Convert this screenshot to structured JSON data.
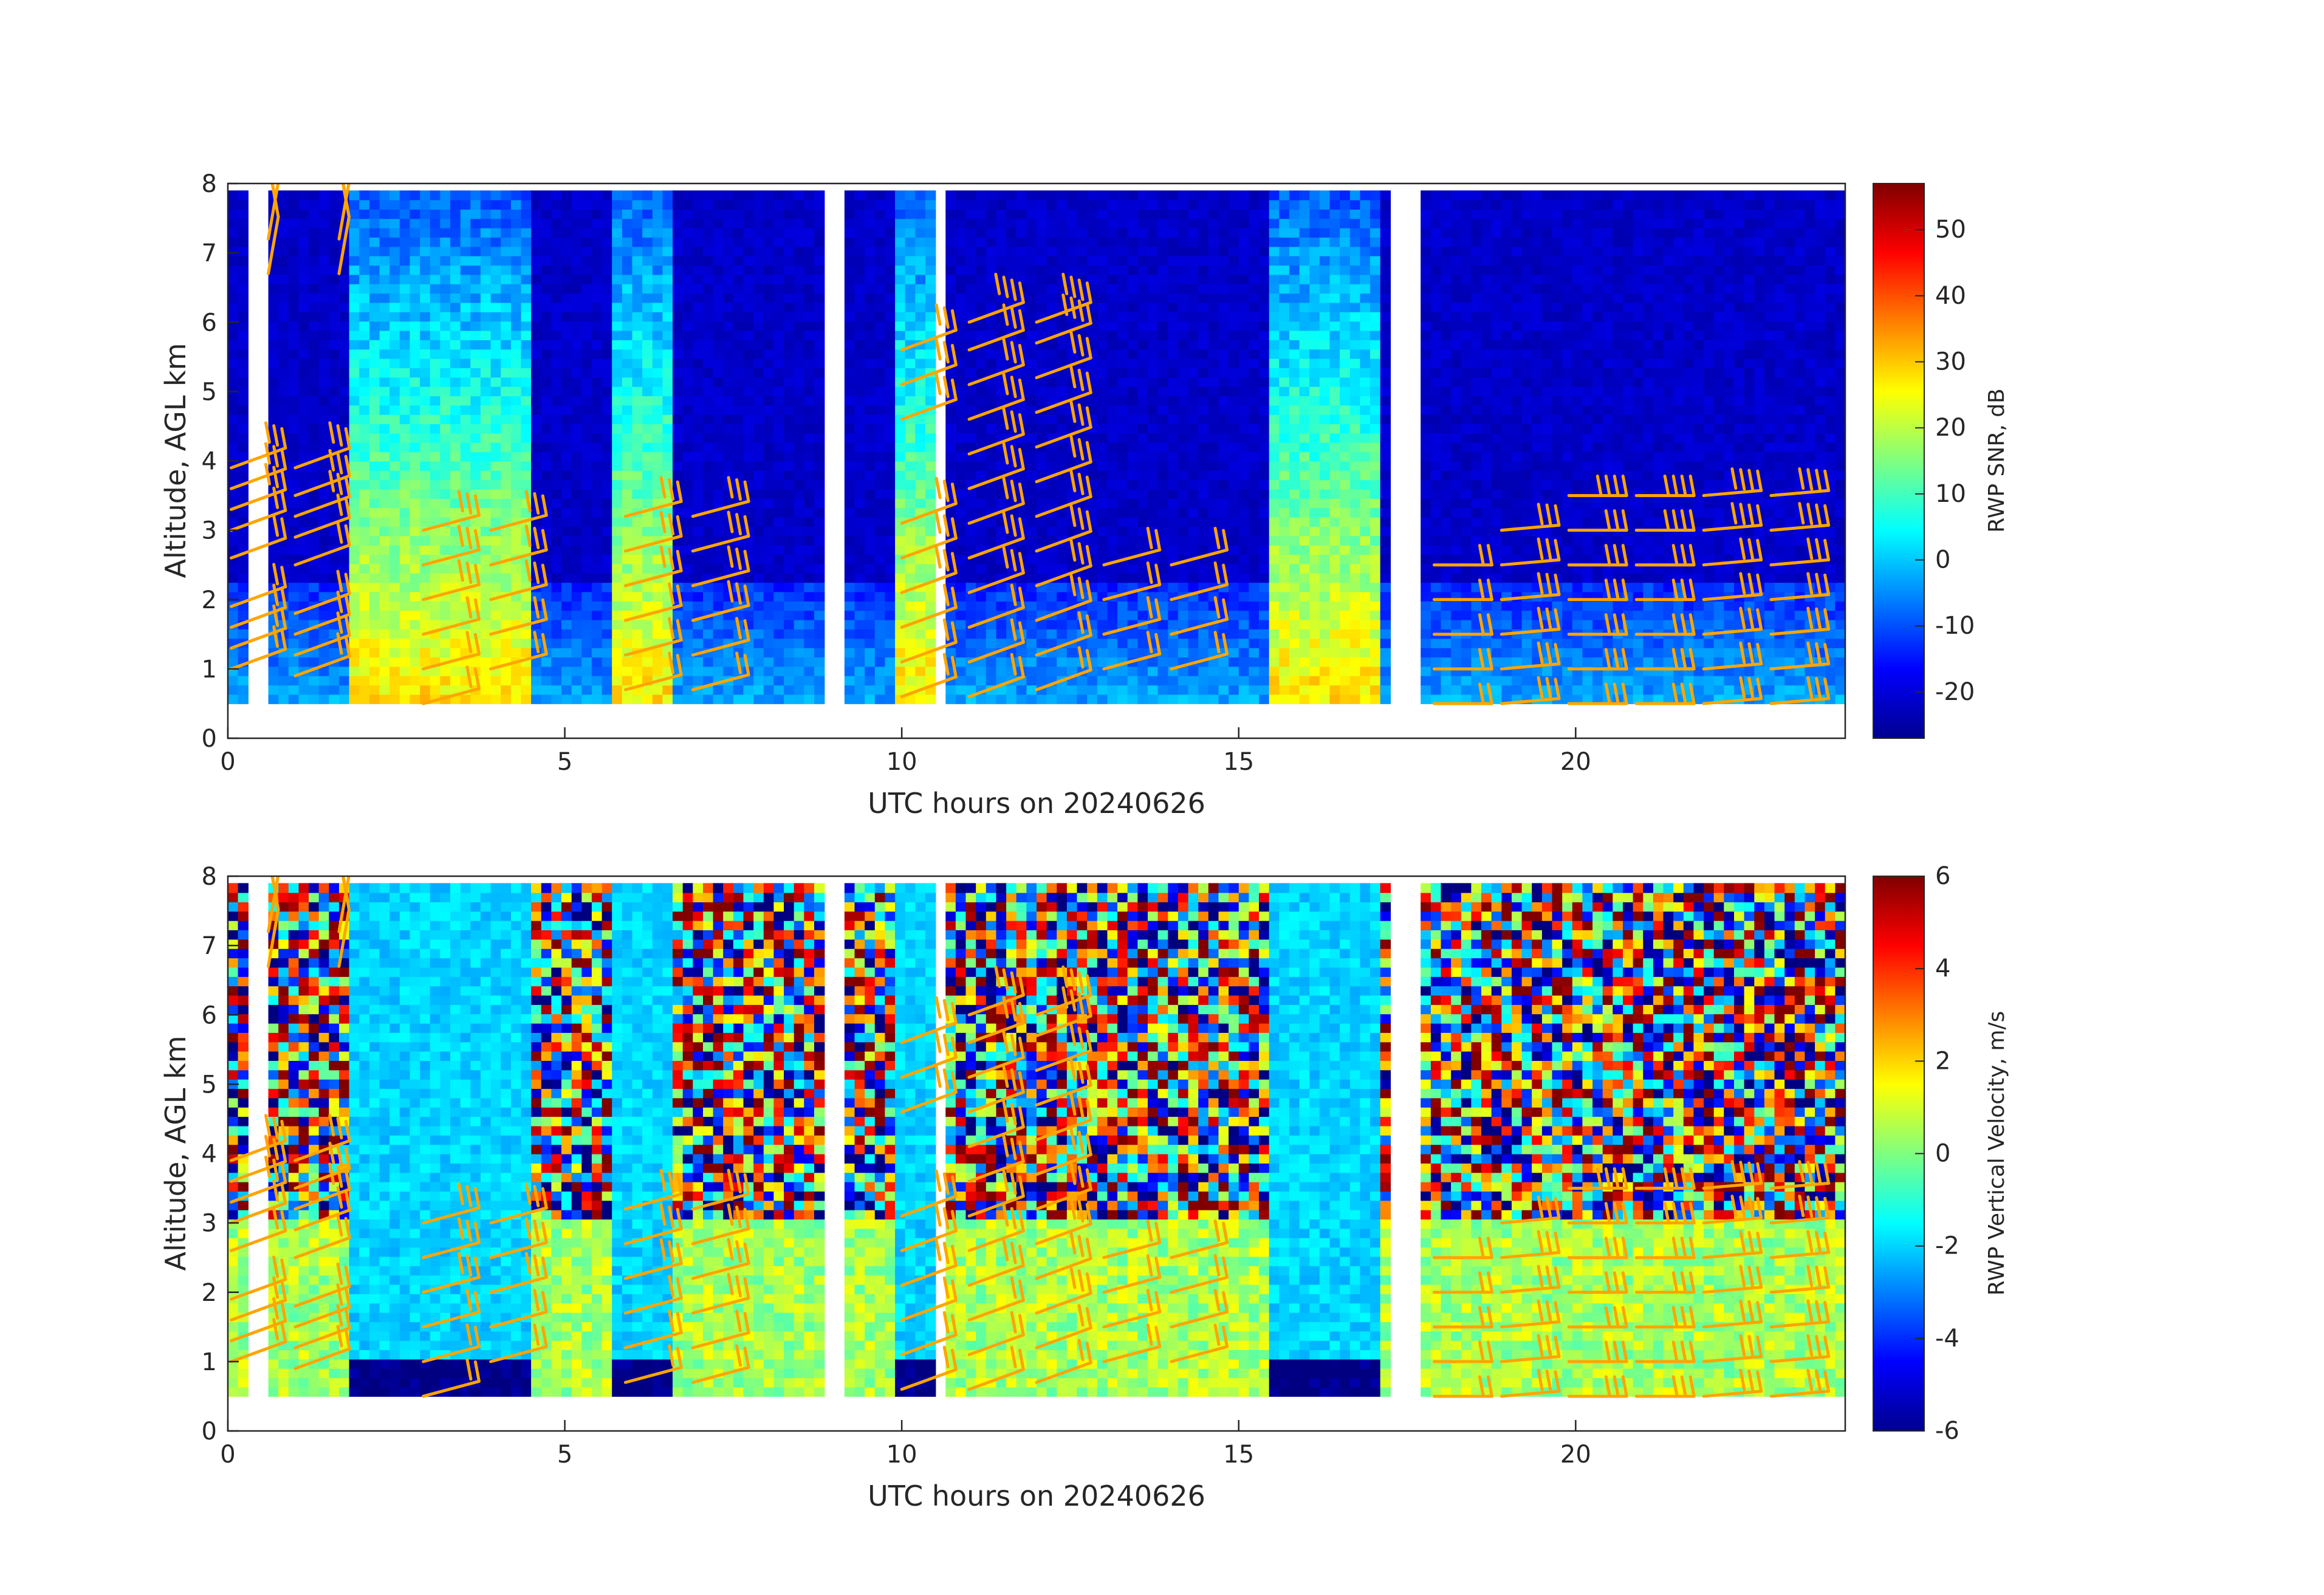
{
  "chart_data": [
    {
      "type": "heatmap",
      "title": "",
      "xlabel": "UTC hours on 20240626",
      "ylabel": "Altitude, AGL km",
      "xlim": [
        0,
        24
      ],
      "ylim": [
        0,
        8
      ],
      "xticks": [
        0,
        5,
        10,
        15,
        20
      ],
      "yticks": [
        0,
        1,
        2,
        3,
        4,
        5,
        6,
        7,
        8
      ],
      "colorbar": {
        "label": "RWP SNR, dB",
        "range": [
          -27,
          57
        ],
        "ticks": [
          -20,
          -10,
          0,
          10,
          20,
          30,
          40,
          50
        ],
        "colormap": "jet"
      },
      "overlay": "wind barbs",
      "barb_color": "#ffa500",
      "convective_periods_hours": [
        [
          1.7,
          4.4
        ],
        [
          5.6,
          6.6
        ],
        [
          9.9,
          10.4
        ],
        [
          15.4,
          17.0
        ]
      ],
      "peak_snr_dB": 35,
      "background_snr_dB": -22,
      "data_gaps_hours": [
        [
          0.3,
          0.6
        ],
        [
          8.8,
          9.1
        ],
        [
          10.5,
          10.6
        ],
        [
          17.1,
          17.6
        ]
      ]
    },
    {
      "type": "heatmap",
      "title": "",
      "xlabel": "UTC hours on 20240626",
      "ylabel": "Altitude, AGL km",
      "xlim": [
        0,
        24
      ],
      "ylim": [
        0,
        8
      ],
      "xticks": [
        0,
        5,
        10,
        15,
        20
      ],
      "yticks": [
        0,
        1,
        2,
        3,
        4,
        5,
        6,
        7,
        8
      ],
      "colorbar": {
        "label": "RWP Vertical Velocity, m/s",
        "range": [
          -6,
          6
        ],
        "ticks": [
          -6,
          -4,
          -2,
          0,
          2,
          4,
          6
        ],
        "colormap": "jet"
      },
      "overlay": "wind barbs",
      "barb_color": "#ffa500",
      "precip_fall_velocity_m_s": -2,
      "heavy_rain_velocity_m_s": -6,
      "noise_above_km": 3
    }
  ],
  "barbs": [
    {
      "t": 0.05,
      "z": [
        1.0,
        1.3,
        1.6,
        1.9,
        2.6,
        3.0,
        3.3,
        3.6,
        3.9
      ],
      "dir": 290,
      "speed": [
        15,
        15,
        15,
        20,
        20,
        20,
        25,
        25,
        25
      ]
    },
    {
      "t": 1.0,
      "z": [
        0.9,
        1.2,
        1.5,
        1.8,
        2.5,
        2.9,
        3.2,
        3.5,
        3.9
      ],
      "dir": 290,
      "speed": [
        15,
        15,
        20,
        20,
        20,
        20,
        25,
        25,
        25
      ]
    },
    {
      "t": 0.6,
      "z": [
        6.7,
        7.2
      ],
      "dir": 350,
      "speed": [
        50,
        50
      ]
    },
    {
      "t": 1.65,
      "z": [
        6.7,
        7.2
      ],
      "dir": 350,
      "speed": [
        50,
        50
      ]
    },
    {
      "t": 2.9,
      "z": [
        0.5,
        1.0,
        1.5,
        2.0,
        2.5,
        3.0
      ],
      "dir": 285,
      "speed": [
        20,
        20,
        20,
        25,
        25,
        25
      ]
    },
    {
      "t": 3.9,
      "z": [
        1.0,
        1.5,
        2.0,
        2.5,
        3.0
      ],
      "dir": 285,
      "speed": [
        20,
        20,
        25,
        25,
        25
      ]
    },
    {
      "t": 5.9,
      "z": [
        0.7,
        1.2,
        1.7,
        2.2,
        2.7,
        3.2
      ],
      "dir": 285,
      "speed": [
        20,
        20,
        20,
        25,
        25,
        25
      ]
    },
    {
      "t": 6.9,
      "z": [
        0.7,
        1.2,
        1.7,
        2.2,
        2.7,
        3.2
      ],
      "dir": 285,
      "speed": [
        20,
        20,
        25,
        25,
        25,
        25
      ]
    },
    {
      "t": 10.0,
      "z": [
        0.6,
        1.1,
        1.6,
        2.1,
        2.6,
        3.1,
        4.6,
        5.1,
        5.6
      ],
      "dir": 290,
      "speed": [
        20,
        20,
        20,
        25,
        25,
        25,
        30,
        30,
        30
      ]
    },
    {
      "t": 11.0,
      "z": [
        0.6,
        1.1,
        1.6,
        2.1,
        2.6,
        3.1,
        3.6,
        4.1,
        4.6,
        5.1,
        5.6,
        6.0
      ],
      "dir": 290,
      "speed": [
        20,
        20,
        20,
        25,
        25,
        25,
        30,
        30,
        30,
        30,
        30,
        35
      ]
    },
    {
      "t": 12.0,
      "z": [
        0.7,
        1.2,
        1.7,
        2.2,
        2.7,
        3.2,
        3.7,
        4.2,
        4.7,
        5.2,
        5.7,
        6.0
      ],
      "dir": 290,
      "speed": [
        20,
        20,
        25,
        25,
        25,
        25,
        30,
        30,
        30,
        30,
        35,
        35
      ]
    },
    {
      "t": 13.0,
      "z": [
        1.0,
        1.5,
        2.0,
        2.5
      ],
      "dir": 285,
      "speed": [
        20,
        20,
        20,
        20
      ]
    },
    {
      "t": 14.0,
      "z": [
        1.0,
        1.5,
        2.0,
        2.5
      ],
      "dir": 285,
      "speed": [
        20,
        20,
        20,
        20
      ]
    },
    {
      "t": 17.9,
      "z": [
        0.5,
        1.0,
        1.5,
        2.0,
        2.5
      ],
      "dir": 270,
      "speed": [
        20,
        20,
        20,
        20,
        20
      ]
    },
    {
      "t": 18.9,
      "z": [
        0.5,
        1.0,
        1.5,
        2.0,
        2.5,
        3.0
      ],
      "dir": 275,
      "speed": [
        25,
        25,
        25,
        25,
        25,
        30
      ]
    },
    {
      "t": 19.9,
      "z": [
        0.5,
        1.0,
        1.5,
        2.0,
        2.5,
        3.0,
        3.5
      ],
      "dir": 270,
      "speed": [
        25,
        25,
        25,
        25,
        30,
        30,
        35
      ]
    },
    {
      "t": 20.9,
      "z": [
        0.5,
        1.0,
        1.5,
        2.0,
        2.5,
        3.0,
        3.5
      ],
      "dir": 270,
      "speed": [
        25,
        25,
        30,
        30,
        30,
        35,
        35
      ]
    },
    {
      "t": 21.9,
      "z": [
        0.5,
        1.0,
        1.5,
        2.0,
        2.5,
        3.0,
        3.5
      ],
      "dir": 275,
      "speed": [
        25,
        25,
        30,
        30,
        30,
        35,
        35
      ]
    },
    {
      "t": 22.9,
      "z": [
        0.5,
        1.0,
        1.5,
        2.0,
        2.5,
        3.0,
        3.5
      ],
      "dir": 275,
      "speed": [
        25,
        25,
        30,
        30,
        30,
        35,
        35
      ]
    }
  ]
}
